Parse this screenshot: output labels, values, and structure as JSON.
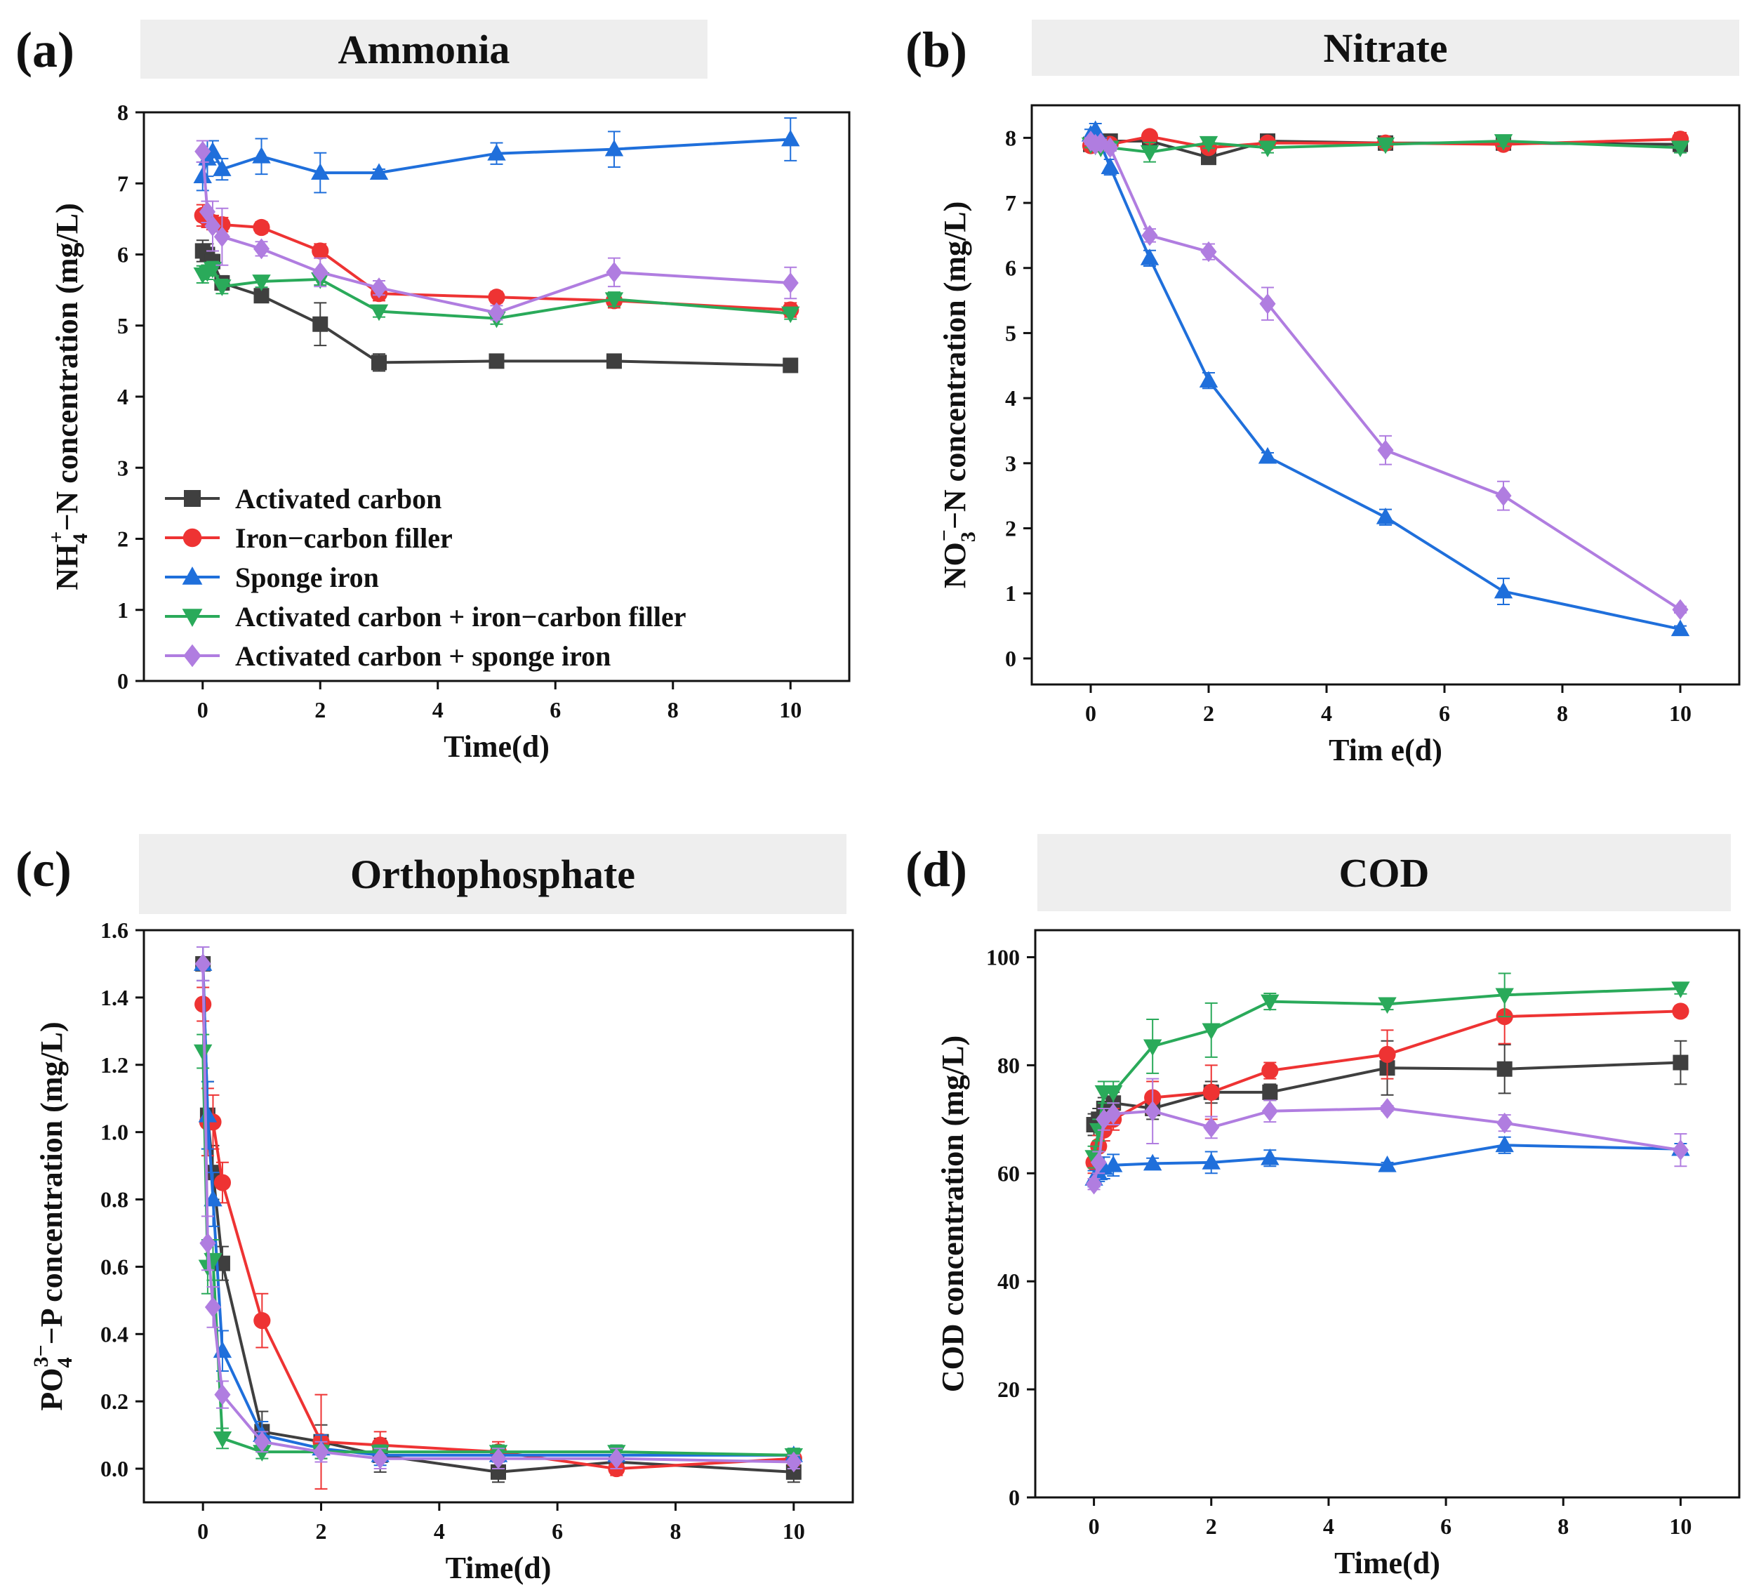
{
  "colors": {
    "activated_carbon": "#3f3f3f",
    "iron_carbon": "#ee3333",
    "sponge_iron": "#1f6fdb",
    "ac_iron_carbon": "#2aaa5a",
    "ac_sponge_iron": "#b07de0",
    "title_bg": "#eeeeee"
  },
  "legend": [
    {
      "key": "activated_carbon",
      "label": "Activated carbon",
      "marker": "square"
    },
    {
      "key": "iron_carbon",
      "label": "Iron−carbon filler",
      "marker": "circle"
    },
    {
      "key": "sponge_iron",
      "label": "Sponge iron",
      "marker": "triangle-up"
    },
    {
      "key": "ac_iron_carbon",
      "label": "Activated carbon + iron−carbon filler",
      "marker": "triangle-down"
    },
    {
      "key": "ac_sponge_iron",
      "label": "Activated carbon + sponge iron",
      "marker": "diamond"
    }
  ],
  "chart_data": [
    {
      "panel": "(a)",
      "title": "Ammonia",
      "type": "line",
      "xlabel": "Time(d)",
      "ylabel_parts": [
        "NH",
        "4",
        "+",
        "−N concentration (mg/L)"
      ],
      "xlim": [
        -1,
        11
      ],
      "ylim": [
        0,
        8
      ],
      "xticks": [
        0,
        2,
        4,
        6,
        8,
        10
      ],
      "yticks": [
        0,
        1,
        2,
        3,
        4,
        5,
        6,
        7,
        8
      ],
      "show_legend": true,
      "series": [
        {
          "key": "activated_carbon",
          "x": [
            0,
            0.08,
            0.17,
            0.33,
            1,
            2,
            3,
            5,
            7,
            10
          ],
          "y": [
            6.05,
            6.0,
            5.9,
            5.6,
            5.42,
            5.02,
            4.48,
            4.5,
            4.5,
            4.44
          ],
          "err": [
            0.15,
            0.15,
            0.1,
            0.1,
            0.08,
            0.3,
            0.12,
            0.05,
            0.05,
            0.05
          ]
        },
        {
          "key": "iron_carbon",
          "x": [
            0,
            0.08,
            0.17,
            0.33,
            1,
            2,
            3,
            5,
            7,
            10
          ],
          "y": [
            6.55,
            6.5,
            6.45,
            6.42,
            6.38,
            6.05,
            5.45,
            5.4,
            5.35,
            5.22
          ],
          "err": [
            0.15,
            0.12,
            0.1,
            0.1,
            0.08,
            0.1,
            0.1,
            0.08,
            0.1,
            0.1
          ]
        },
        {
          "key": "sponge_iron",
          "x": [
            0,
            0.08,
            0.17,
            0.33,
            1,
            2,
            3,
            5,
            7,
            10
          ],
          "y": [
            7.1,
            7.35,
            7.45,
            7.2,
            7.38,
            7.15,
            7.15,
            7.42,
            7.48,
            7.62
          ],
          "err": [
            0.2,
            0.25,
            0.15,
            0.15,
            0.25,
            0.28,
            0.05,
            0.15,
            0.25,
            0.3
          ]
        },
        {
          "key": "ac_iron_carbon",
          "x": [
            0,
            0.08,
            0.17,
            0.33,
            1,
            2,
            3,
            5,
            7,
            10
          ],
          "y": [
            5.72,
            5.75,
            5.8,
            5.55,
            5.62,
            5.65,
            5.2,
            5.1,
            5.37,
            5.17
          ],
          "err": [
            0.12,
            0.1,
            0.1,
            0.1,
            0.08,
            0.08,
            0.08,
            0.08,
            0.1,
            0.08
          ]
        },
        {
          "key": "ac_sponge_iron",
          "x": [
            0,
            0.08,
            0.17,
            0.33,
            1,
            2,
            3,
            5,
            7,
            10
          ],
          "y": [
            7.45,
            6.6,
            6.4,
            6.25,
            6.08,
            5.75,
            5.53,
            5.18,
            5.75,
            5.6
          ],
          "err": [
            0.15,
            0.15,
            0.35,
            0.4,
            0.1,
            0.2,
            0.1,
            0.1,
            0.2,
            0.22
          ]
        }
      ]
    },
    {
      "panel": "(b)",
      "title": "Nitrate",
      "type": "line",
      "xlabel": "Tim e(d)",
      "ylabel_parts": [
        "NO",
        "3",
        "−",
        "−N concentration (mg/L)"
      ],
      "xlim": [
        -1,
        11
      ],
      "ylim": [
        -0.4,
        8.5
      ],
      "xticks": [
        0,
        2,
        4,
        6,
        8,
        10
      ],
      "yticks": [
        0,
        1,
        2,
        3,
        4,
        5,
        6,
        7,
        8
      ],
      "show_legend": false,
      "series": [
        {
          "key": "activated_carbon",
          "x": [
            0,
            0.08,
            0.17,
            0.33,
            1,
            2,
            3,
            5,
            7,
            10
          ],
          "y": [
            7.9,
            7.92,
            7.9,
            7.95,
            7.95,
            7.7,
            7.95,
            7.92,
            7.92,
            7.9
          ],
          "err": [
            0.05,
            0.05,
            0.05,
            0.05,
            0.05,
            0.1,
            0.05,
            0.05,
            0.05,
            0.08
          ]
        },
        {
          "key": "iron_carbon",
          "x": [
            0,
            0.08,
            0.17,
            0.33,
            1,
            2,
            3,
            5,
            7,
            10
          ],
          "y": [
            7.88,
            7.9,
            7.9,
            7.9,
            8.02,
            7.85,
            7.92,
            7.92,
            7.9,
            7.98
          ],
          "err": [
            0.05,
            0.05,
            0.05,
            0.05,
            0.08,
            0.08,
            0.05,
            0.05,
            0.05,
            0.1
          ]
        },
        {
          "key": "sponge_iron",
          "x": [
            0,
            0.08,
            0.17,
            0.33,
            1,
            2,
            3,
            5,
            7,
            10
          ],
          "y": [
            8.05,
            8.12,
            7.9,
            7.55,
            6.15,
            4.27,
            3.1,
            2.17,
            1.03,
            0.45
          ],
          "err": [
            0.08,
            0.1,
            0.1,
            0.12,
            0.12,
            0.12,
            0.06,
            0.12,
            0.2,
            0.05
          ]
        },
        {
          "key": "ac_iron_carbon",
          "x": [
            0,
            0.08,
            0.17,
            0.33,
            1,
            2,
            3,
            5,
            7,
            10
          ],
          "y": [
            7.9,
            7.88,
            7.85,
            7.85,
            7.78,
            7.92,
            7.85,
            7.9,
            7.95,
            7.85
          ],
          "err": [
            0.05,
            0.05,
            0.05,
            0.05,
            0.15,
            0.08,
            0.08,
            0.05,
            0.08,
            0.08
          ]
        },
        {
          "key": "ac_sponge_iron",
          "x": [
            0,
            0.08,
            0.17,
            0.33,
            1,
            2,
            3,
            5,
            7,
            10
          ],
          "y": [
            7.95,
            7.9,
            7.92,
            7.85,
            6.5,
            6.25,
            5.45,
            3.2,
            2.5,
            0.75
          ],
          "err": [
            0.05,
            0.05,
            0.05,
            0.05,
            0.1,
            0.12,
            0.25,
            0.22,
            0.22,
            0.05
          ]
        }
      ]
    },
    {
      "panel": "(c)",
      "title": "Orthophosphate",
      "type": "line",
      "xlabel": "Time(d)",
      "ylabel_parts": [
        "PO",
        "4",
        "3−",
        "−P concentration (mg/L)"
      ],
      "xlim": [
        -1,
        11
      ],
      "ylim": [
        -0.1,
        1.6
      ],
      "xticks": [
        0,
        2,
        4,
        6,
        8,
        10
      ],
      "yticks": [
        0.0,
        0.2,
        0.4,
        0.6,
        0.8,
        1.0,
        1.2,
        1.4,
        1.6
      ],
      "ytick_labels": [
        "0.0",
        "0.2",
        "0.4",
        "0.6",
        "0.8",
        "1.0",
        "1.2",
        "1.4",
        "1.6"
      ],
      "show_legend": false,
      "series": [
        {
          "key": "activated_carbon",
          "x": [
            0,
            0.08,
            0.17,
            0.33,
            1,
            2,
            3,
            5,
            7,
            10
          ],
          "y": [
            1.5,
            1.05,
            0.88,
            0.61,
            0.11,
            0.08,
            0.04,
            -0.01,
            0.02,
            -0.01
          ],
          "err": [
            0.05,
            0.1,
            0.08,
            0.05,
            0.06,
            0.05,
            0.05,
            0.03,
            0.03,
            0.03
          ]
        },
        {
          "key": "iron_carbon",
          "x": [
            0,
            0.08,
            0.17,
            0.33,
            1,
            2,
            3,
            5,
            7,
            10
          ],
          "y": [
            1.38,
            1.03,
            1.03,
            0.85,
            0.44,
            0.08,
            0.07,
            0.05,
            0.0,
            0.03
          ],
          "err": [
            0.05,
            0.1,
            0.08,
            0.06,
            0.08,
            0.14,
            0.04,
            0.03,
            0.02,
            0.02
          ]
        },
        {
          "key": "sponge_iron",
          "x": [
            0,
            0.08,
            0.17,
            0.33,
            1,
            2,
            3,
            5,
            7,
            10
          ],
          "y": [
            1.5,
            1.05,
            0.8,
            0.35,
            0.1,
            0.06,
            0.04,
            0.04,
            0.04,
            0.04
          ],
          "err": [
            0.05,
            0.1,
            0.08,
            0.06,
            0.04,
            0.04,
            0.03,
            0.02,
            0.02,
            0.02
          ]
        },
        {
          "key": "ac_iron_carbon",
          "x": [
            0,
            0.08,
            0.17,
            0.33,
            1,
            2,
            3,
            5,
            7,
            10
          ],
          "y": [
            1.24,
            0.6,
            0.62,
            0.09,
            0.05,
            0.05,
            0.05,
            0.05,
            0.05,
            0.04
          ],
          "err": [
            0.05,
            0.08,
            0.06,
            0.03,
            0.02,
            0.02,
            0.02,
            0.02,
            0.02,
            0.02
          ]
        },
        {
          "key": "ac_sponge_iron",
          "x": [
            0,
            0.08,
            0.17,
            0.33,
            1,
            2,
            3,
            5,
            7,
            10
          ],
          "y": [
            1.5,
            0.67,
            0.48,
            0.22,
            0.08,
            0.05,
            0.03,
            0.03,
            0.03,
            0.02
          ],
          "err": [
            0.05,
            0.08,
            0.06,
            0.04,
            0.03,
            0.03,
            0.03,
            0.03,
            0.03,
            0.02
          ]
        }
      ]
    },
    {
      "panel": "(d)",
      "title": "COD",
      "type": "line",
      "xlabel": "Time(d)",
      "ylabel_parts": [
        "COD concentration (mg/L)"
      ],
      "xlim": [
        -1,
        11
      ],
      "ylim": [
        0,
        105
      ],
      "xticks": [
        0,
        2,
        4,
        6,
        8,
        10
      ],
      "yticks": [
        0,
        20,
        40,
        60,
        80,
        100
      ],
      "show_legend": false,
      "series": [
        {
          "key": "activated_carbon",
          "x": [
            0,
            0.08,
            0.17,
            0.33,
            1,
            2,
            3,
            5,
            7,
            10
          ],
          "y": [
            69,
            70,
            72,
            73,
            72,
            75,
            75,
            79.5,
            79.3,
            80.5
          ],
          "err": [
            2,
            2,
            2,
            2,
            2,
            2,
            1.5,
            5,
            4.5,
            4
          ]
        },
        {
          "key": "iron_carbon",
          "x": [
            0,
            0.08,
            0.17,
            0.33,
            1,
            2,
            3,
            5,
            7,
            10
          ],
          "y": [
            62,
            65,
            68,
            70,
            74,
            75,
            79,
            82,
            89,
            90
          ],
          "err": [
            2,
            2,
            2,
            2,
            3,
            5,
            1.5,
            4.5,
            5,
            1
          ]
        },
        {
          "key": "sponge_iron",
          "x": [
            0,
            0.08,
            0.17,
            0.33,
            1,
            2,
            3,
            5,
            7,
            10
          ],
          "y": [
            59,
            60,
            61,
            61.5,
            61.8,
            62,
            62.8,
            61.5,
            65.2,
            64.5
          ],
          "err": [
            1.5,
            1.5,
            2,
            2,
            1,
            2,
            1.5,
            0.5,
            1.5,
            1
          ]
        },
        {
          "key": "ac_iron_carbon",
          "x": [
            0,
            0.08,
            0.17,
            0.33,
            1,
            2,
            3,
            5,
            7,
            10
          ],
          "y": [
            63,
            68,
            75,
            75,
            83.5,
            86.5,
            91.8,
            91.3,
            93,
            94.2
          ],
          "err": [
            2,
            2,
            2,
            2,
            5,
            5,
            1.5,
            1,
            4,
            1
          ]
        },
        {
          "key": "ac_sponge_iron",
          "x": [
            0,
            0.08,
            0.17,
            0.33,
            1,
            2,
            3,
            5,
            7,
            10
          ],
          "y": [
            58,
            62,
            70,
            71,
            71.5,
            68.5,
            71.5,
            72,
            69.3,
            64.3
          ],
          "err": [
            1,
            2,
            2,
            2,
            6,
            2,
            2,
            0.5,
            1.5,
            3
          ]
        }
      ]
    }
  ]
}
